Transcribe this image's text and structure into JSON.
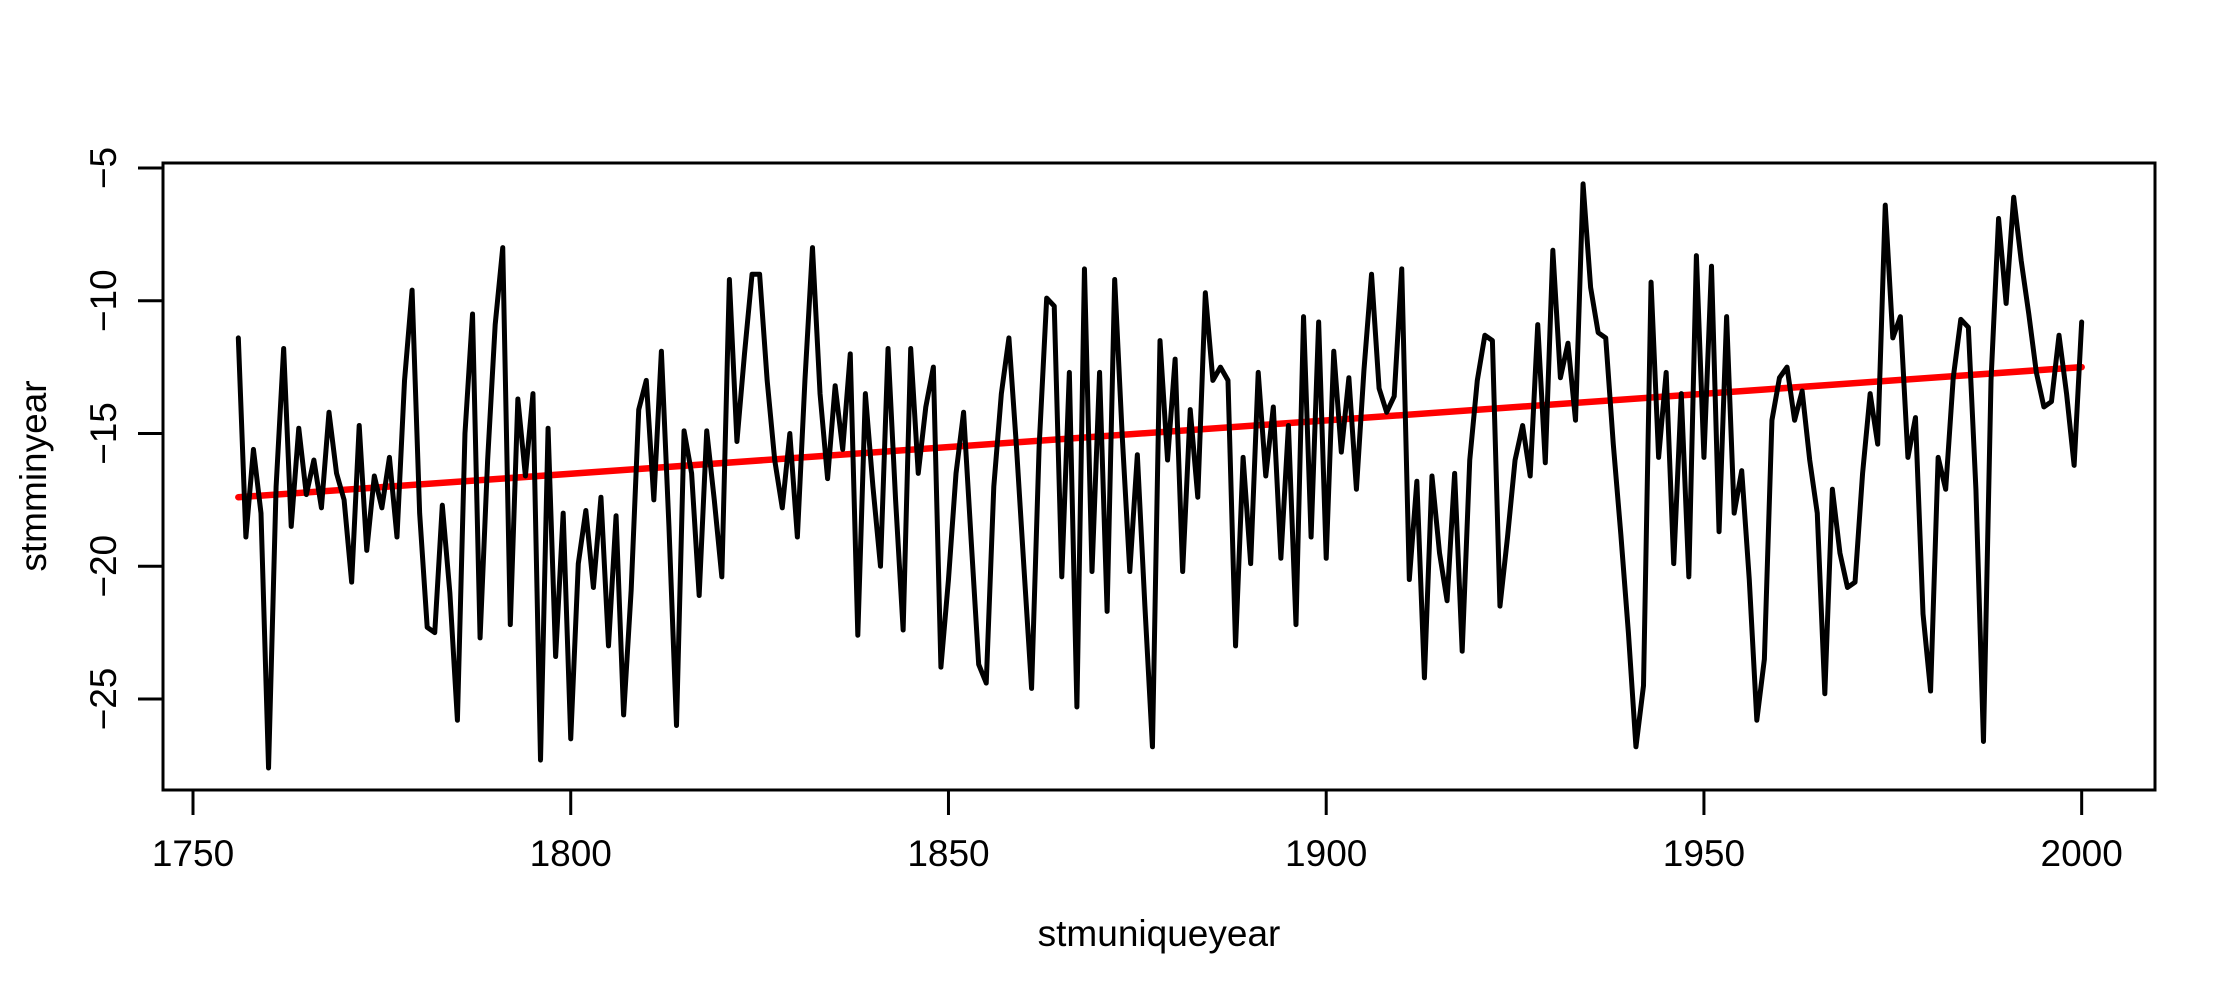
{
  "page": {
    "background": "#ffffff"
  },
  "chart_data": {
    "type": "line",
    "title": "",
    "xlabel": "stmuniqueyear",
    "ylabel": "stmminyear",
    "x_ticks": [
      1750,
      1800,
      1850,
      1900,
      1950,
      2000
    ],
    "x_tick_labels": [
      "1750",
      "1800",
      "1850",
      "1900",
      "1950",
      "2000"
    ],
    "y_ticks": [
      -5,
      -10,
      -15,
      -20,
      -25
    ],
    "y_tick_labels": [
      "−5",
      "−10",
      "−15",
      "−20",
      "−25"
    ],
    "xlim": [
      1745,
      2010
    ],
    "ylim": [
      -28.4,
      -4.8
    ],
    "grid": false,
    "legend_position": "none",
    "colors": {
      "series": "#000000",
      "trend": "#FF0000",
      "axis": "#000000",
      "background": "#FFFFFF"
    },
    "series": [
      {
        "name": "stmminyear",
        "type": "line",
        "color": "#000000",
        "start_year": 1756,
        "end_year": 2000,
        "values": [
          -11.4,
          -18.9,
          -15.6,
          -18.0,
          -27.6,
          -17.0,
          -11.8,
          -18.5,
          -14.8,
          -17.3,
          -16.0,
          -17.8,
          -14.2,
          -16.5,
          -17.5,
          -20.6,
          -14.7,
          -19.4,
          -16.6,
          -17.8,
          -15.9,
          -18.9,
          -13.0,
          -9.6,
          -18.0,
          -22.3,
          -22.5,
          -17.7,
          -21.0,
          -25.8,
          -15.0,
          -10.5,
          -22.7,
          -16.0,
          -10.9,
          -8.0,
          -22.2,
          -13.7,
          -16.6,
          -13.5,
          -27.3,
          -14.8,
          -23.4,
          -18.0,
          -26.5,
          -19.9,
          -17.9,
          -20.8,
          -17.4,
          -23.0,
          -18.1,
          -25.6,
          -20.9,
          -14.1,
          -13.0,
          -17.5,
          -11.9,
          -18.5,
          -26.0,
          -14.9,
          -16.5,
          -21.1,
          -14.9,
          -17.5,
          -20.4,
          -9.2,
          -15.3,
          -12.0,
          -9.0,
          -9.0,
          -13.0,
          -16.0,
          -17.8,
          -15.0,
          -18.9,
          -13.0,
          -8.0,
          -13.5,
          -16.7,
          -13.2,
          -15.6,
          -12.0,
          -22.6,
          -13.5,
          -17.0,
          -20.0,
          -11.8,
          -17.5,
          -22.4,
          -11.8,
          -16.5,
          -14.0,
          -12.5,
          -23.8,
          -20.5,
          -16.5,
          -14.2,
          -19.0,
          -23.7,
          -24.4,
          -17.0,
          -13.5,
          -11.4,
          -15.5,
          -20.1,
          -24.6,
          -15.5,
          -9.9,
          -10.2,
          -20.4,
          -12.7,
          -25.3,
          -8.8,
          -20.2,
          -12.7,
          -21.7,
          -9.2,
          -15.1,
          -20.2,
          -15.8,
          -21.5,
          -26.8,
          -11.5,
          -16.0,
          -12.2,
          -20.2,
          -14.1,
          -17.4,
          -9.7,
          -13.0,
          -12.5,
          -13.0,
          -23.0,
          -15.9,
          -19.9,
          -12.7,
          -16.6,
          -14.0,
          -19.7,
          -14.7,
          -22.2,
          -10.6,
          -18.9,
          -10.8,
          -19.7,
          -11.9,
          -15.7,
          -12.9,
          -17.1,
          -12.6,
          -9.0,
          -13.3,
          -14.2,
          -13.6,
          -8.8,
          -20.5,
          -16.8,
          -24.2,
          -16.6,
          -19.5,
          -21.3,
          -16.5,
          -23.2,
          -16.0,
          -13.0,
          -11.3,
          -11.5,
          -21.5,
          -18.9,
          -16.0,
          -14.7,
          -16.6,
          -10.9,
          -16.1,
          -8.1,
          -12.9,
          -11.6,
          -14.5,
          -5.6,
          -9.5,
          -11.2,
          -11.4,
          -15.4,
          -18.8,
          -22.5,
          -26.8,
          -24.5,
          -9.3,
          -15.9,
          -12.7,
          -19.9,
          -13.5,
          -20.4,
          -8.3,
          -15.9,
          -8.7,
          -18.7,
          -10.6,
          -18.0,
          -16.4,
          -20.5,
          -25.8,
          -23.5,
          -14.5,
          -12.9,
          -12.5,
          -14.5,
          -13.4,
          -16.0,
          -18.0,
          -24.8,
          -17.1,
          -19.5,
          -20.8,
          -20.6,
          -16.5,
          -13.5,
          -15.4,
          -6.4,
          -11.4,
          -10.6,
          -15.9,
          -14.4,
          -21.8,
          -24.7,
          -15.9,
          -17.1,
          -12.9,
          -10.7,
          -11.0,
          -17.1,
          -26.6,
          -13.0,
          -6.9,
          -10.1,
          -6.1,
          -8.5,
          -10.5,
          -12.7,
          -14.0,
          -13.8,
          -11.3,
          -13.5,
          -16.2,
          -10.8
        ]
      }
    ],
    "trend_line": {
      "name": "linear-fit",
      "color": "#FF0000",
      "x": [
        1756,
        2000
      ],
      "y": [
        -17.4,
        -12.5
      ]
    }
  }
}
